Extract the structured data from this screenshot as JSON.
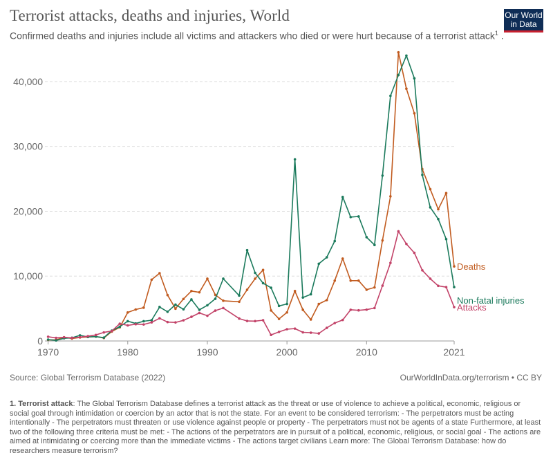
{
  "header": {
    "title": "Terrorist attacks, deaths and injuries, World",
    "subtitle": "Confirmed deaths and injuries include all victims and attackers who died or were hurt because of a terrorist attack",
    "subtitle_sup": "1",
    "subtitle_end": " .",
    "logo_line1": "Our World",
    "logo_line2": "in Data",
    "logo_color": "#0f2d56",
    "logo_accent": "#c8202f"
  },
  "footer": {
    "source": "Source: Global Terrorism Database (2022)",
    "url": "OurWorldInData.org/terrorism • CC BY",
    "note_label": "1. Terrorist attack",
    "note_text": ": The Global Terrorism Database defines a terrorist attack as the threat or use of violence to achieve a political, economic, religious or social goal through intimidation or coercion by an actor that is not the state. For an event to be considered terrorism: - The perpetrators must be acting intentionally - The perpetrators must threaten or use violence against people or property - The perpetrators must not be agents of a state Furthermore, at least two of the following three criteria must be met: - The actions of the perpetrators are in pursuit of a political, economic, religious, or social goal - The actions are aimed at intimidating or coercing more than the immediate victims - The actions target civilians Learn more: The Global Terrorism Database: how do researchers measure terrorism?"
  },
  "chart_data": {
    "type": "line",
    "title": "Terrorist attacks, deaths and injuries, World",
    "xlim": [
      1970,
      2021
    ],
    "ylim": [
      0,
      45000
    ],
    "x_ticks": [
      1970,
      1980,
      1990,
      2000,
      2010,
      2021
    ],
    "y_ticks": [
      0,
      10000,
      20000,
      30000,
      40000
    ],
    "y_tick_labels": [
      "0",
      "10,000",
      "20,000",
      "30,000",
      "40,000"
    ],
    "grid": "horizontal dashed",
    "legend": "right, at line ends",
    "x": [
      1970,
      1971,
      1972,
      1973,
      1974,
      1975,
      1976,
      1977,
      1978,
      1979,
      1980,
      1981,
      1982,
      1983,
      1984,
      1985,
      1986,
      1987,
      1988,
      1989,
      1990,
      1991,
      1992,
      1994,
      1995,
      1996,
      1997,
      1998,
      1999,
      2000,
      2001,
      2002,
      2003,
      2004,
      2005,
      2006,
      2007,
      2008,
      2009,
      2010,
      2011,
      2012,
      2013,
      2014,
      2015,
      2016,
      2017,
      2018,
      2019,
      2020,
      2021
    ],
    "series": [
      {
        "name": "Deaths",
        "color": "#c15b1f",
        "values": [
          174,
          173,
          566,
          370,
          539,
          617,
          674,
          456,
          1459,
          2100,
          4400,
          4851,
          5136,
          9444,
          10450,
          7073,
          4978,
          6474,
          7700,
          7500,
          9600,
          7100,
          6200,
          6050,
          7900,
          9600,
          10950,
          4700,
          3400,
          4400,
          7700,
          4800,
          3300,
          5700,
          6300,
          9300,
          12700,
          9300,
          9300,
          7900,
          8250,
          15500,
          22300,
          44500,
          38900,
          35100,
          26500,
          23400,
          20300,
          22800,
          11500
        ]
      },
      {
        "name": "Non-fatal injuries",
        "color": "#1b7a5c",
        "values": [
          212,
          82,
          409,
          495,
          865,
          617,
          674,
          517,
          1600,
          2200,
          3049,
          2700,
          3043,
          3200,
          5240,
          4500,
          5600,
          4880,
          6400,
          4800,
          5500,
          6500,
          9600,
          7000,
          14000,
          10500,
          8900,
          8200,
          5400,
          5700,
          28000,
          6700,
          7200,
          11900,
          12900,
          15400,
          22200,
          19100,
          19200,
          16000,
          14800,
          25500,
          37800,
          41000,
          44000,
          40500,
          25600,
          20600,
          18800,
          15700,
          8300
        ]
      },
      {
        "name": "Attacks",
        "color": "#c24268",
        "values": [
          651,
          471,
          568,
          473,
          581,
          740,
          923,
          1319,
          1526,
          2662,
          2400,
          2586,
          2544,
          2870,
          3495,
          2915,
          2860,
          3183,
          3721,
          4324,
          3887,
          4683,
          5071,
          3458,
          3081,
          3058,
          3197,
          934,
          1395,
          1814,
          1907,
          1333,
          1278,
          1166,
          2017,
          2758,
          3242,
          4805,
          4721,
          4826,
          5076,
          8522,
          12036,
          16903,
          14965,
          13587,
          10900,
          9600,
          8500,
          8300,
          5226
        ]
      }
    ]
  }
}
